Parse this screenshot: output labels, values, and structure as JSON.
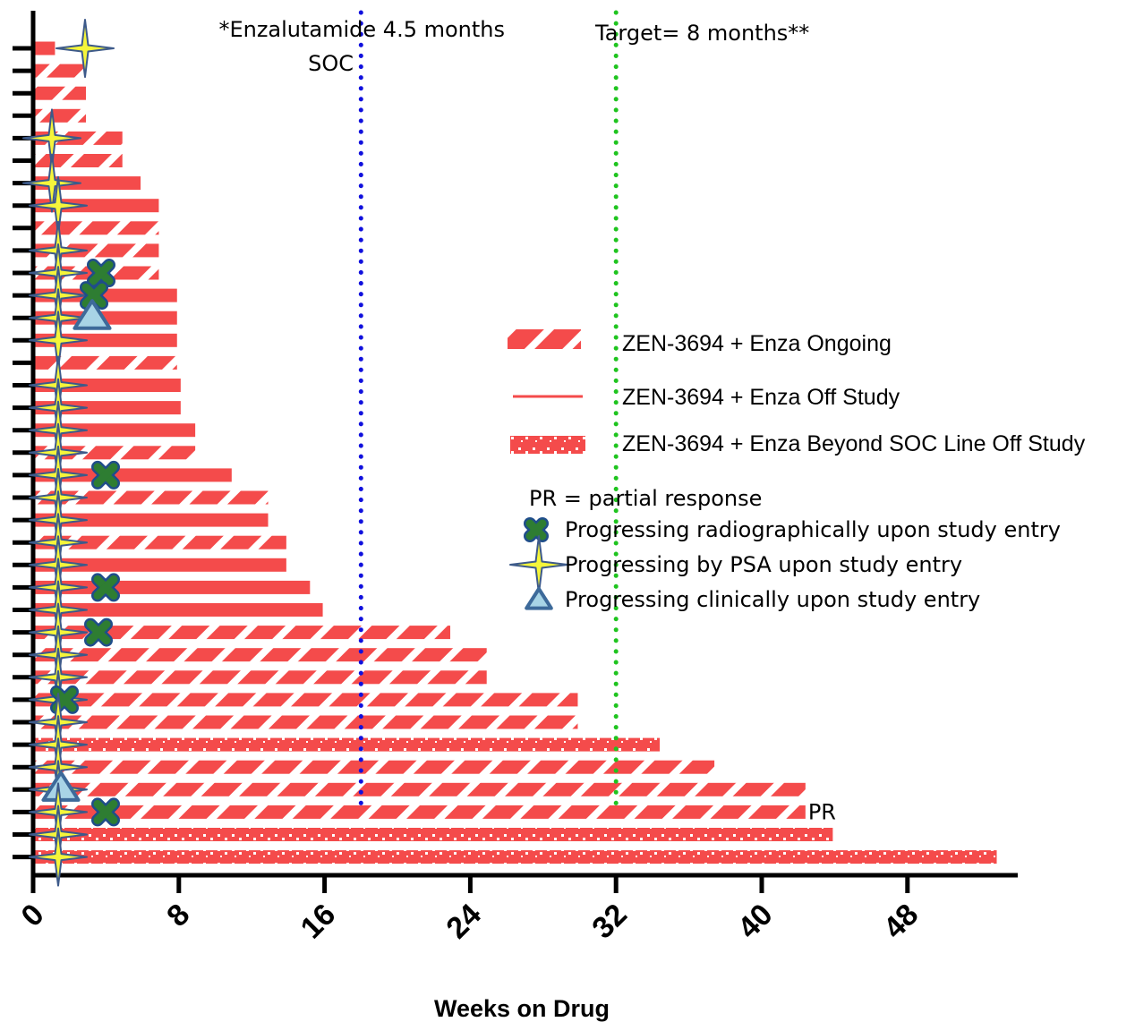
{
  "chart_data": {
    "type": "bar",
    "orientation": "horizontal",
    "title": "",
    "xlabel": "Weeks on Drug",
    "ylabel": "",
    "xlim": [
      0,
      54
    ],
    "xticks": [
      "0",
      "8",
      "16",
      "24",
      "32",
      "40",
      "48"
    ],
    "reference_lines": [
      {
        "x": 18,
        "color": "#1010dd",
        "label_lines": [
          "*Enzalutamide 4.5 months",
          "SOC"
        ]
      },
      {
        "x": 32,
        "color": "#1fc41f",
        "label_lines": [
          "Target= 8 months**"
        ]
      }
    ],
    "legend": {
      "status_entries": [
        {
          "key": "ongoing",
          "label": "ZEN-3694 + Enza Ongoing"
        },
        {
          "key": "off",
          "label": "ZEN-3694 + Enza Off Study"
        },
        {
          "key": "beyond",
          "label": "ZEN-3694 + Enza Beyond SOC Line Off Study"
        }
      ],
      "note": "PR = partial response",
      "marker_entries": [
        {
          "key": "radio",
          "label": "Progressing radiographically upon study entry"
        },
        {
          "key": "psa",
          "label": "Progressing by PSA upon study entry"
        },
        {
          "key": "clinical",
          "label": "Progressing clinically upon study entry"
        }
      ]
    },
    "colors": {
      "bar": "#f44b4b",
      "radio": "#2e7d32",
      "psa": "#f5f53a",
      "psa_outline": "#3d5a8a",
      "clinical": "#a8d4e6",
      "clinical_outline": "#3d6a9a"
    },
    "patients": [
      {
        "weeks": 1.2,
        "status": "off",
        "markers": [
          "psa"
        ]
      },
      {
        "weeks": 2.9,
        "status": "ongoing",
        "markers": []
      },
      {
        "weeks": 2.9,
        "status": "ongoing",
        "markers": []
      },
      {
        "weeks": 2.9,
        "status": "ongoing",
        "markers": []
      },
      {
        "weeks": 4.9,
        "status": "ongoing",
        "markers": [
          "psa"
        ]
      },
      {
        "weeks": 4.9,
        "status": "ongoing",
        "markers": []
      },
      {
        "weeks": 5.9,
        "status": "off",
        "markers": [
          "psa"
        ]
      },
      {
        "weeks": 6.9,
        "status": "off",
        "markers": [
          "psa"
        ]
      },
      {
        "weeks": 6.9,
        "status": "ongoing",
        "markers": []
      },
      {
        "weeks": 6.9,
        "status": "ongoing",
        "markers": [
          "psa"
        ]
      },
      {
        "weeks": 6.9,
        "status": "ongoing",
        "markers": [
          "psa",
          "radio"
        ]
      },
      {
        "weeks": 7.9,
        "status": "off",
        "markers": [
          "psa",
          "radio"
        ]
      },
      {
        "weeks": 7.9,
        "status": "off",
        "markers": [
          "psa",
          "clinical"
        ]
      },
      {
        "weeks": 7.9,
        "status": "off",
        "markers": [
          "psa"
        ]
      },
      {
        "weeks": 7.9,
        "status": "ongoing",
        "markers": []
      },
      {
        "weeks": 8.1,
        "status": "off",
        "markers": [
          "psa"
        ]
      },
      {
        "weeks": 8.1,
        "status": "off",
        "markers": [
          "psa"
        ]
      },
      {
        "weeks": 8.9,
        "status": "off",
        "markers": [
          "psa"
        ]
      },
      {
        "weeks": 8.9,
        "status": "ongoing",
        "markers": [
          "psa"
        ]
      },
      {
        "weeks": 10.9,
        "status": "off",
        "markers": [
          "psa",
          "radio"
        ]
      },
      {
        "weeks": 12.9,
        "status": "ongoing",
        "markers": [
          "psa"
        ]
      },
      {
        "weeks": 12.9,
        "status": "off",
        "markers": [
          "psa"
        ]
      },
      {
        "weeks": 13.9,
        "status": "ongoing",
        "markers": [
          "psa"
        ]
      },
      {
        "weeks": 13.9,
        "status": "off",
        "markers": [
          "psa"
        ]
      },
      {
        "weeks": 15.2,
        "status": "off",
        "markers": [
          "psa",
          "radio"
        ]
      },
      {
        "weeks": 15.9,
        "status": "off",
        "markers": [
          "psa"
        ]
      },
      {
        "weeks": 22.9,
        "status": "ongoing",
        "markers": [
          "psa",
          "radio"
        ]
      },
      {
        "weeks": 24.9,
        "status": "ongoing",
        "markers": [
          "psa"
        ]
      },
      {
        "weeks": 24.9,
        "status": "ongoing",
        "markers": [
          "psa"
        ]
      },
      {
        "weeks": 29.9,
        "status": "ongoing",
        "markers": [
          "psa",
          "radio"
        ]
      },
      {
        "weeks": 29.9,
        "status": "ongoing",
        "markers": [
          "psa"
        ]
      },
      {
        "weeks": 34.4,
        "status": "beyond",
        "markers": [
          "psa"
        ]
      },
      {
        "weeks": 37.4,
        "status": "ongoing",
        "markers": [
          "psa"
        ]
      },
      {
        "weeks": 42.4,
        "status": "ongoing",
        "markers": [
          "psa",
          "clinical"
        ]
      },
      {
        "weeks": 42.4,
        "status": "ongoing",
        "markers": [
          "psa",
          "radio"
        ],
        "annotation": "PR"
      },
      {
        "weeks": 43.9,
        "status": "beyond",
        "markers": [
          "psa"
        ]
      },
      {
        "weeks": 52.9,
        "status": "beyond",
        "markers": [
          "psa"
        ]
      }
    ]
  }
}
